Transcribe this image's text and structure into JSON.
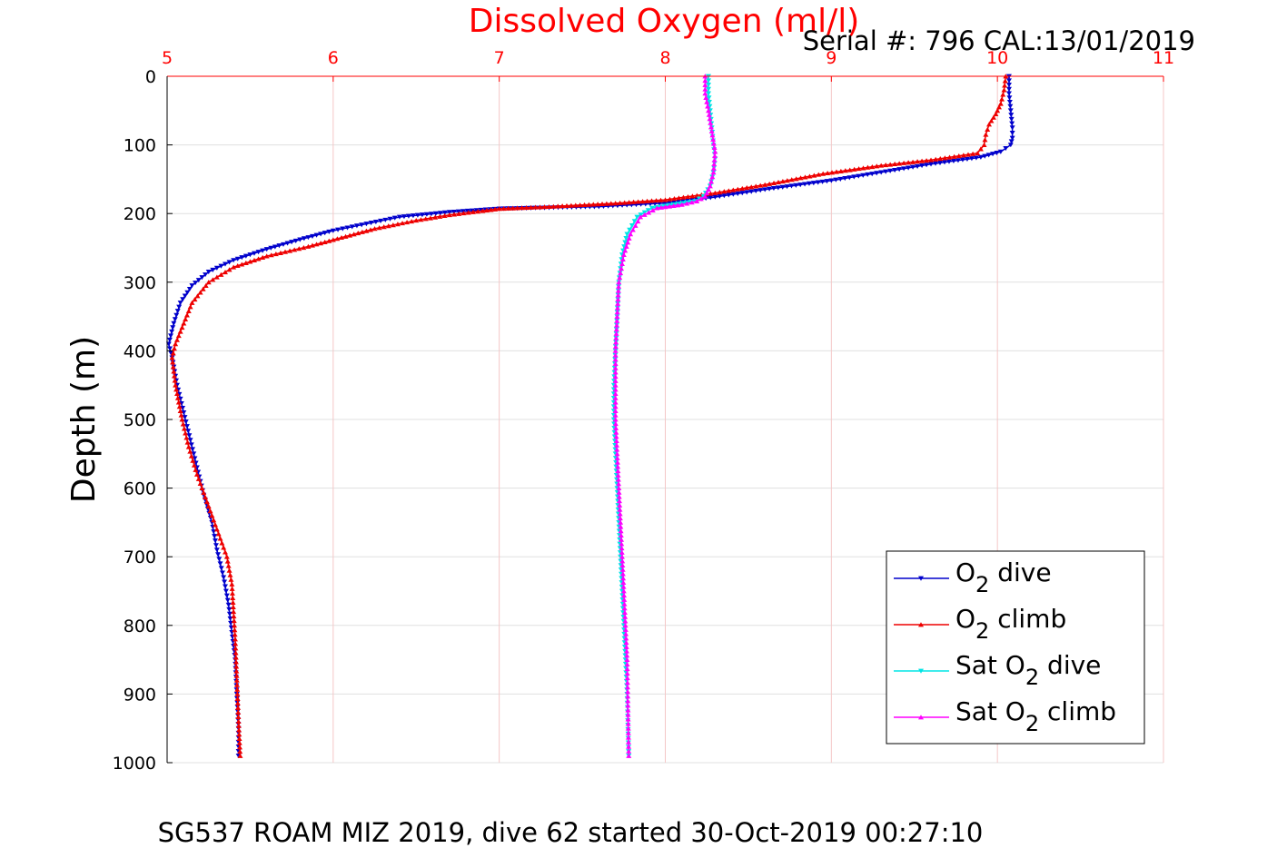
{
  "chart_data": {
    "type": "scatter",
    "title": "Dissolved Oxygen (ml/l)",
    "subtitle": "Serial #: 796  CAL:13/01/2019",
    "caption": "SG537 ROAM MIZ 2019, dive 62 started 30-Oct-2019 00:27:10",
    "xlabel": "Dissolved Oxygen (ml/l)",
    "ylabel": "Depth (m)",
    "xlim": [
      5,
      11
    ],
    "ylim": [
      0,
      1000
    ],
    "y_reversed": true,
    "x_axis_position": "top",
    "grid": true,
    "legend_position": "bottom-right",
    "xticks": [
      "5",
      "6",
      "7",
      "8",
      "9",
      "10",
      "11"
    ],
    "yticks": [
      "0",
      "100",
      "200",
      "300",
      "400",
      "500",
      "600",
      "700",
      "800",
      "900",
      "1000"
    ],
    "colors": {
      "axis_top": "#ff0000",
      "grid": "#e0e0e0",
      "o2_dive": "#0000cc",
      "o2_climb": "#ee0000",
      "sat_dive": "#00e5e5",
      "sat_climb": "#ff00ff"
    },
    "legend": [
      {
        "key": "o2_dive",
        "pre": "O",
        "sub": "2",
        "post": " dive"
      },
      {
        "key": "o2_climb",
        "pre": "O",
        "sub": "2",
        "post": " climb"
      },
      {
        "key": "sat_dive",
        "pre": "Sat O",
        "sub": "2",
        "post": " dive"
      },
      {
        "key": "sat_climb",
        "pre": "Sat O",
        "sub": "2",
        "post": " climb"
      }
    ],
    "series": [
      {
        "key": "o2_dive",
        "name": "O2 dive",
        "marker": "down",
        "x": [
          10.07,
          10.07,
          10.08,
          10.09,
          10.09,
          10.08,
          10.05,
          10.02,
          9.9,
          9.6,
          9.3,
          9.0,
          8.6,
          8.3,
          8.05,
          7.6,
          7.0,
          6.7,
          6.4,
          6.2,
          6.0,
          5.8,
          5.6,
          5.4,
          5.25,
          5.15,
          5.08,
          5.04,
          5.01,
          5.03,
          5.06,
          5.1,
          5.14,
          5.18,
          5.22,
          5.27,
          5.3,
          5.34,
          5.37,
          5.39,
          5.41,
          5.42,
          5.43,
          5.43
        ],
        "y": [
          0,
          25,
          50,
          75,
          90,
          100,
          105,
          110,
          118,
          128,
          140,
          152,
          165,
          176,
          184,
          190,
          193,
          198,
          205,
          215,
          225,
          238,
          252,
          268,
          285,
          305,
          330,
          360,
          390,
          410,
          450,
          490,
          530,
          570,
          610,
          650,
          690,
          730,
          770,
          810,
          850,
          900,
          950,
          990
        ]
      },
      {
        "key": "o2_climb",
        "name": "O2 climb",
        "marker": "up",
        "x": [
          10.05,
          10.04,
          10.02,
          9.99,
          9.95,
          9.93,
          9.92,
          9.88,
          9.6,
          9.3,
          8.95,
          8.6,
          8.3,
          8.0,
          7.7,
          7.3,
          7.0,
          6.9,
          6.7,
          6.5,
          6.25,
          6.05,
          5.85,
          5.6,
          5.4,
          5.25,
          5.15,
          5.1,
          5.05,
          5.03,
          5.05,
          5.09,
          5.13,
          5.18,
          5.24,
          5.3,
          5.36,
          5.39,
          5.4,
          5.41,
          5.42,
          5.43,
          5.44
        ],
        "y": [
          0,
          20,
          40,
          55,
          70,
          85,
          100,
          112,
          122,
          130,
          142,
          158,
          170,
          180,
          185,
          190,
          193,
          196,
          202,
          210,
          222,
          235,
          248,
          262,
          278,
          300,
          330,
          360,
          390,
          410,
          450,
          500,
          540,
          580,
          620,
          660,
          700,
          740,
          780,
          820,
          880,
          940,
          990
        ]
      },
      {
        "key": "sat_dive",
        "name": "Sat O2 dive",
        "marker": "down",
        "x": [
          8.26,
          8.26,
          8.27,
          8.28,
          8.29,
          8.3,
          8.29,
          8.27,
          8.23,
          8.18,
          8.05,
          7.92,
          7.83,
          7.77,
          7.74,
          7.72,
          7.71,
          7.7,
          7.69,
          7.69,
          7.7,
          7.71,
          7.72,
          7.73,
          7.74,
          7.75,
          7.76,
          7.77,
          7.78
        ],
        "y": [
          0,
          25,
          50,
          75,
          100,
          120,
          140,
          160,
          175,
          182,
          187,
          192,
          205,
          230,
          260,
          300,
          350,
          400,
          450,
          500,
          550,
          600,
          650,
          700,
          750,
          800,
          850,
          900,
          990
        ]
      },
      {
        "key": "sat_climb",
        "name": "Sat O2 climb",
        "marker": "up",
        "x": [
          8.24,
          8.24,
          8.26,
          8.28,
          8.3,
          8.29,
          8.27,
          8.24,
          8.19,
          8.1,
          7.95,
          7.85,
          7.79,
          7.75,
          7.72,
          7.71,
          7.7,
          7.7,
          7.7,
          7.71,
          7.72,
          7.73,
          7.74,
          7.75,
          7.76,
          7.77,
          7.78
        ],
        "y": [
          0,
          25,
          50,
          80,
          110,
          140,
          160,
          175,
          182,
          187,
          192,
          205,
          230,
          260,
          300,
          350,
          400,
          450,
          500,
          550,
          600,
          650,
          700,
          750,
          800,
          850,
          990
        ]
      }
    ]
  }
}
